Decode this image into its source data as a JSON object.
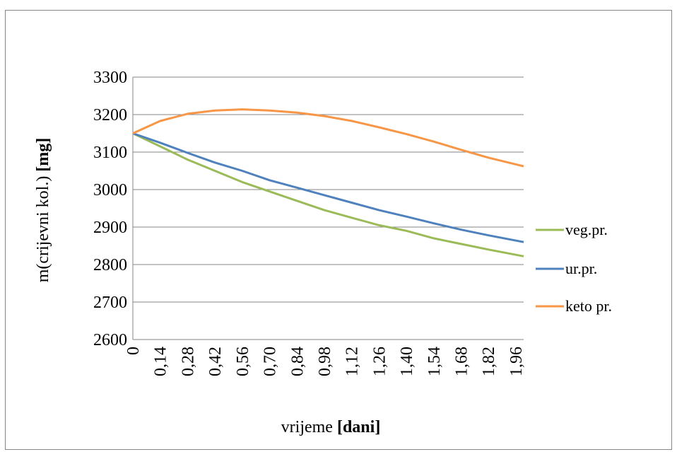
{
  "chart_data": {
    "type": "line",
    "title": "",
    "xlabel": {
      "text": "vrijeme ",
      "bold": "[dani]"
    },
    "ylabel": {
      "text": "m(crijevni kol.) ",
      "bold": "[mg]"
    },
    "ylim": [
      2600,
      3300
    ],
    "yticks": [
      "2600",
      "2700",
      "2800",
      "2900",
      "3000",
      "3100",
      "3200",
      "3300"
    ],
    "xlim": [
      0,
      2.0
    ],
    "xticks": [
      {
        "v": 0,
        "label": "0"
      },
      {
        "v": 0.14,
        "label": "0,14"
      },
      {
        "v": 0.28,
        "label": "0,28"
      },
      {
        "v": 0.42,
        "label": "0,42"
      },
      {
        "v": 0.56,
        "label": "0,56"
      },
      {
        "v": 0.7,
        "label": "0,70"
      },
      {
        "v": 0.84,
        "label": "0,84"
      },
      {
        "v": 0.98,
        "label": "0,98"
      },
      {
        "v": 1.12,
        "label": "1,12"
      },
      {
        "v": 1.26,
        "label": "1,26"
      },
      {
        "v": 1.4,
        "label": "1,40"
      },
      {
        "v": 1.54,
        "label": "1,54"
      },
      {
        "v": 1.68,
        "label": "1,68"
      },
      {
        "v": 1.82,
        "label": "1,82"
      },
      {
        "v": 1.96,
        "label": "1,96"
      }
    ],
    "grid": true,
    "legend_position": "right",
    "series": [
      {
        "name": "veg.pr.",
        "color": "#9BBB59",
        "x": [
          0,
          0.14,
          0.28,
          0.42,
          0.56,
          0.7,
          0.84,
          0.98,
          1.12,
          1.26,
          1.4,
          1.54,
          1.68,
          1.82,
          2.0
        ],
        "y": [
          3150,
          3115,
          3080,
          3050,
          3020,
          2995,
          2970,
          2945,
          2925,
          2905,
          2890,
          2870,
          2855,
          2840,
          2822
        ]
      },
      {
        "name": "ur.pr.",
        "color": "#4F81BD",
        "x": [
          0,
          0.14,
          0.28,
          0.42,
          0.56,
          0.7,
          0.84,
          0.98,
          1.12,
          1.26,
          1.4,
          1.54,
          1.68,
          1.82,
          2.0
        ],
        "y": [
          3150,
          3125,
          3098,
          3072,
          3050,
          3025,
          3005,
          2985,
          2965,
          2945,
          2928,
          2910,
          2893,
          2878,
          2860
        ]
      },
      {
        "name": "keto pr.",
        "color": "#F79646",
        "x": [
          0,
          0.14,
          0.28,
          0.42,
          0.56,
          0.7,
          0.84,
          0.98,
          1.12,
          1.26,
          1.4,
          1.54,
          1.68,
          1.82,
          2.0
        ],
        "y": [
          3150,
          3183,
          3202,
          3211,
          3214,
          3211,
          3205,
          3196,
          3183,
          3166,
          3148,
          3128,
          3106,
          3085,
          3062
        ]
      }
    ]
  }
}
